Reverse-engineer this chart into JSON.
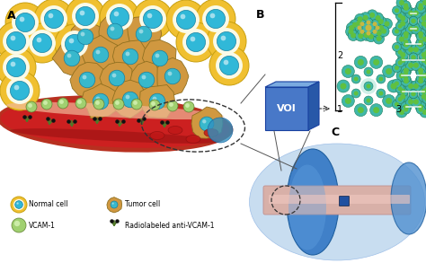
{
  "background_color": "#FFFFFF",
  "normal_cell_outer": "#F0C030",
  "normal_cell_white": "#FAFAE8",
  "normal_cell_inner": "#30B8D8",
  "tumor_cell_outer": "#D09840",
  "tumor_cell_inner": "#38B8CC",
  "vessel_red": "#CC2020",
  "vessel_wall": "#C05030",
  "vessel_endo": "#F0C0A0",
  "vcam_outer": "#A0D070",
  "vcam_inner": "#D8F0B0",
  "antibody_color": "#507828",
  "brain_bg_color": "#B8D4EE",
  "mri_disk_color": "#4080C8",
  "mri_tube_color": "#D8B0A8",
  "voi_box_face": "#4878C8",
  "voi_box_top": "#7AAAE0",
  "voi_box_side": "#2858A8",
  "mol_teal": "#40B8A8",
  "mol_green": "#60C040",
  "mol_yellow": "#C8B840",
  "helix_teal": "#40B8C8",
  "helix_green": "#60C840",
  "panel_A": "A",
  "panel_B": "B",
  "panel_C": "C",
  "voi_label": "VOI"
}
